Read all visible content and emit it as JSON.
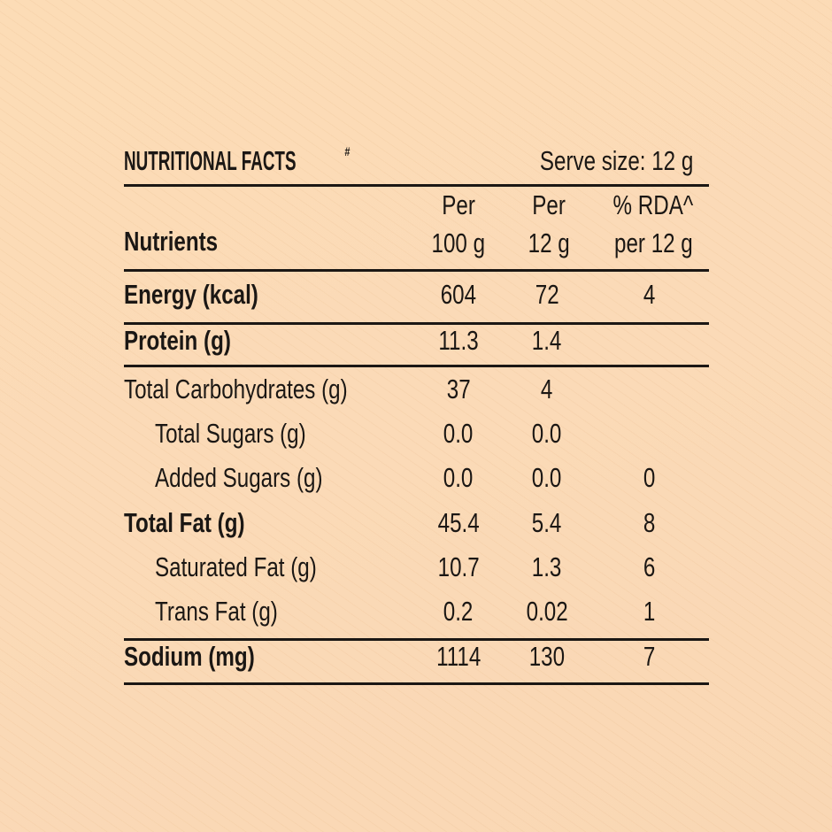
{
  "title": "NUTRITIONAL FACTS",
  "title_mark": "#",
  "serve_size": "Serve size: 12 g",
  "headers": {
    "nutrients": "Nutrients",
    "per100_l1": "Per",
    "per100_l2": "100 g",
    "per12_l1": "Per",
    "per12_l2": "12 g",
    "rda_l1": "% RDA^",
    "rda_l2": "per 12 g"
  },
  "rows": [
    {
      "name": "Energy (kcal)",
      "per100": "604",
      "per12": "72",
      "rda": "4"
    },
    {
      "name": "Protein (g)",
      "per100": "11.3",
      "per12": "1.4",
      "rda": ""
    },
    {
      "name": "Total Carbohydrates (g)",
      "per100": "37",
      "per12": "4",
      "rda": ""
    },
    {
      "name": "Total Sugars (g)",
      "per100": "0.0",
      "per12": "0.0",
      "rda": ""
    },
    {
      "name": "Added Sugars (g)",
      "per100": "0.0",
      "per12": "0.0",
      "rda": "0"
    },
    {
      "name": "Total Fat (g)",
      "per100": "45.4",
      "per12": "5.4",
      "rda": "8"
    },
    {
      "name": "Saturated Fat (g)",
      "per100": "10.7",
      "per12": "1.3",
      "rda": "6"
    },
    {
      "name": "Trans Fat (g)",
      "per100": "0.2",
      "per12": "0.02",
      "rda": "1"
    },
    {
      "name": "Sodium (mg)",
      "per100": "1114",
      "per12": "130",
      "rda": "7"
    }
  ]
}
